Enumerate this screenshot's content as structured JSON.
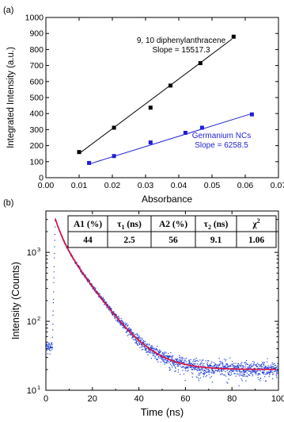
{
  "chart_data": [
    {
      "type": "scatter",
      "panel_label": "(a)",
      "xlabel": "Absorbance",
      "ylabel": "Integrated Intensity (a.u.)",
      "xlim": [
        0.0,
        0.07
      ],
      "ylim": [
        0,
        1000
      ],
      "x_ticks": [
        "0.00",
        "0.01",
        "0.02",
        "0.03",
        "0.04",
        "0.05",
        "0.06",
        "0.07"
      ],
      "y_ticks": [
        "0",
        "100",
        "200",
        "300",
        "400",
        "500",
        "600",
        "700",
        "800",
        "900",
        "1000"
      ],
      "grid": false,
      "series": [
        {
          "name": "9, 10 diphenylanthracene",
          "annotation": [
            "9, 10 diphenylanthracene",
            "Slope = 15517.3"
          ],
          "color": "#000000",
          "x": [
            0.01,
            0.0205,
            0.0315,
            0.0375,
            0.0465,
            0.0565
          ],
          "y": [
            160,
            312,
            437,
            575,
            715,
            880
          ],
          "fit_line": [
            [
              0.01,
              150
            ],
            [
              0.056,
              865
            ]
          ]
        },
        {
          "name": "Germanium NCs",
          "annotation": [
            "Germanium NCs",
            "Slope = 6258.5"
          ],
          "color": "#1f1fd6",
          "x": [
            0.013,
            0.0205,
            0.0315,
            0.042,
            0.047,
            0.062
          ],
          "y": [
            92,
            135,
            220,
            280,
            312,
            395
          ],
          "fit_line": [
            [
              0.013,
              85
            ],
            [
              0.062,
              400
            ]
          ]
        }
      ]
    },
    {
      "type": "scatter",
      "panel_label": "(b)",
      "xlabel": "Time (ns)",
      "ylabel": "Intensity (Counts)",
      "xlim": [
        0,
        100
      ],
      "ylim_log10": [
        1,
        3.6
      ],
      "y_scale": "log",
      "x_ticks": [
        "0",
        "20",
        "40",
        "60",
        "80",
        "100"
      ],
      "y_ticks": [
        {
          "base": "10",
          "exp": "1",
          "value": 10
        },
        {
          "base": "10",
          "exp": "2",
          "value": 100
        },
        {
          "base": "10",
          "exp": "3",
          "value": 1000
        }
      ],
      "grid": false,
      "series": [
        {
          "name": "decay data",
          "color": "#1f3fd6",
          "model": {
            "baseline": 20,
            "peak_time": 4,
            "peak_value": 3100,
            "A1": 0.44,
            "tau1": 2.5,
            "A2": 0.56,
            "tau2": 9.1,
            "pre_level": 42
          }
        },
        {
          "name": "fit",
          "color": "#e0103a"
        }
      ],
      "table": {
        "headers": [
          {
            "main": "A1 (%)",
            "sub": ""
          },
          {
            "main": "τ",
            "sub": "1",
            "unit": " (ns)"
          },
          {
            "main": "A2 (%)",
            "sub": ""
          },
          {
            "main": "τ",
            "sub": "2",
            "unit": " (ns)"
          },
          {
            "main": "χ",
            "sup": "2"
          }
        ],
        "values": [
          "44",
          "2.5",
          "56",
          "9.1",
          "1.06"
        ]
      }
    }
  ]
}
